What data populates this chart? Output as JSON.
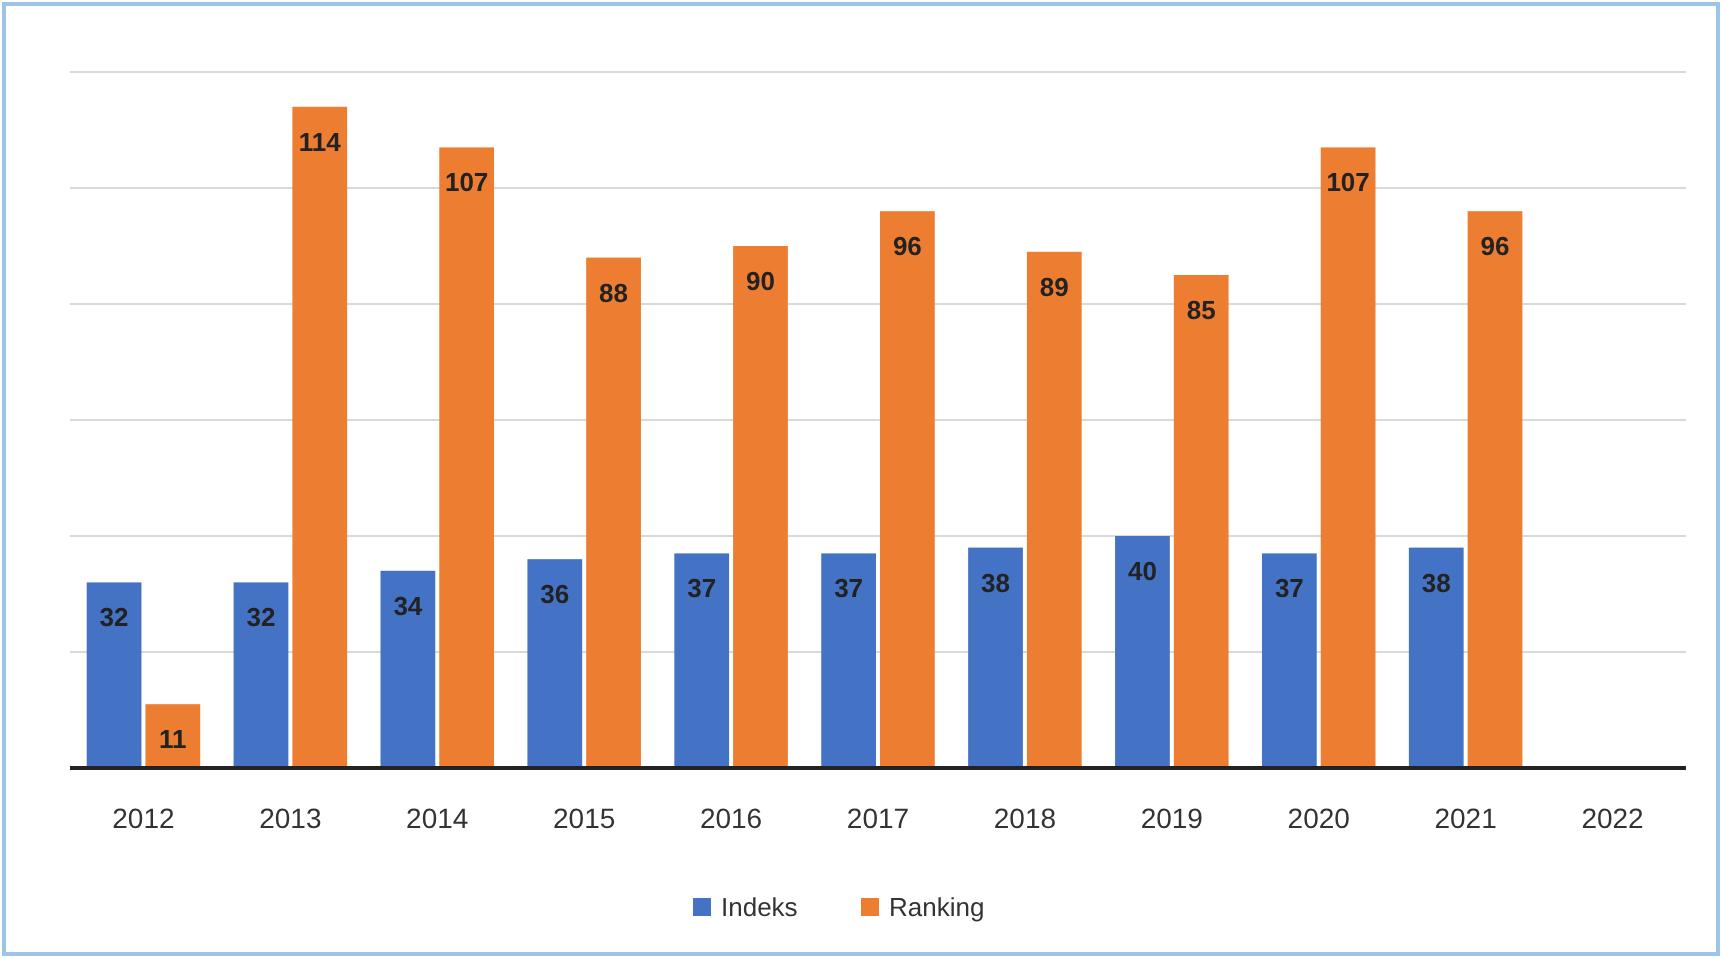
{
  "chart_data": {
    "type": "bar",
    "categories": [
      "2012",
      "2013",
      "2014",
      "2015",
      "2016",
      "2017",
      "2018",
      "2019",
      "2020",
      "2021",
      "2022"
    ],
    "series": [
      {
        "name": "Indeks",
        "color": "#4472c4",
        "values": [
          32,
          32,
          34,
          36,
          37,
          37,
          38,
          40,
          37,
          38,
          null
        ]
      },
      {
        "name": "Ranking",
        "color": "#ed7d31",
        "values": [
          11,
          114,
          107,
          88,
          90,
          96,
          89,
          85,
          107,
          96,
          null
        ]
      }
    ],
    "ylim": [
      0,
      120
    ],
    "yticks": [
      {
        "value": 0,
        "label": null
      },
      {
        "value": 20,
        "label": null
      },
      {
        "value": 40,
        "label": null
      },
      {
        "value": 60,
        "label": null
      },
      {
        "value": 80,
        "label": null
      },
      {
        "value": 100,
        "label": null
      },
      {
        "value": 120,
        "label": null
      }
    ],
    "tick_labels": "x",
    "grid": "y",
    "data_labels": true,
    "legend": "bottom"
  }
}
